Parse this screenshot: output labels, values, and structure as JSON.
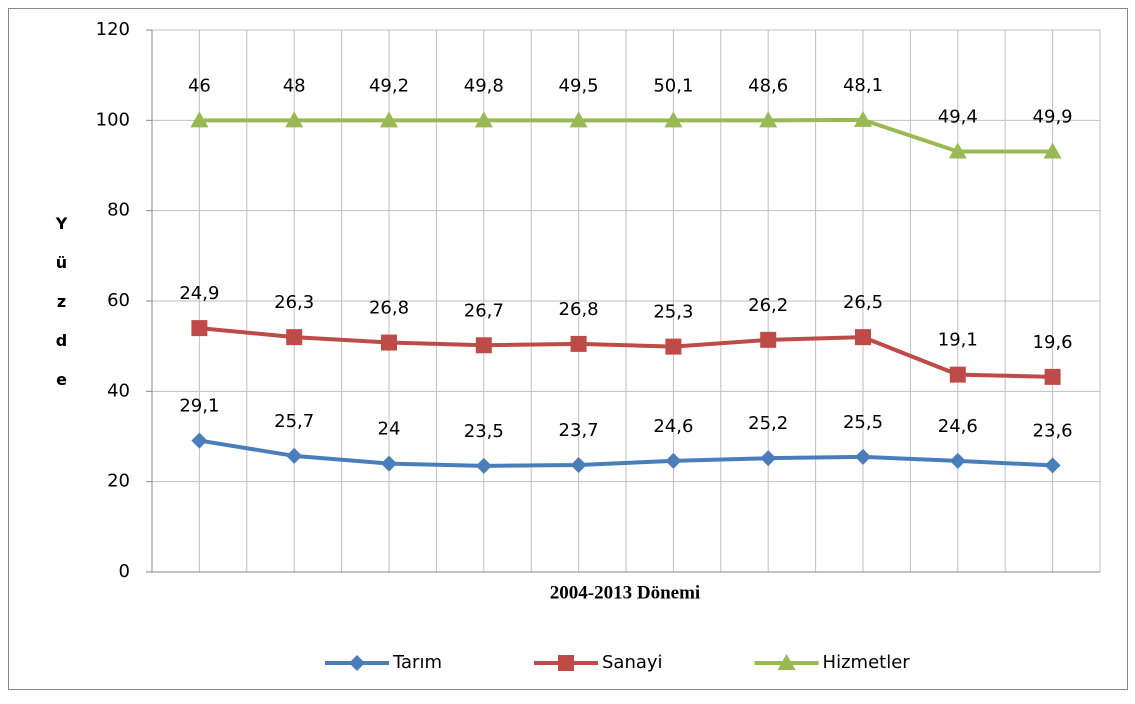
{
  "chart_data": {
    "type": "line",
    "stacked": true,
    "categories": [
      null,
      null,
      null,
      null,
      null,
      null,
      null,
      null,
      null,
      null
    ],
    "xlabel": "2004-2013 Dönemi",
    "ylabel": "Yüzde",
    "ylim": [
      0,
      120
    ],
    "yticks": [
      0,
      20,
      40,
      60,
      80,
      100,
      120
    ],
    "grid": true,
    "legend": "bottom",
    "series": [
      {
        "name": "Tarım",
        "color": "#4a7ebb",
        "marker": "diamond",
        "values": [
          29.1,
          25.7,
          24,
          23.5,
          23.7,
          24.6,
          25.2,
          25.5,
          24.6,
          23.6
        ],
        "value_labels": [
          "29,1",
          "25,7",
          "24",
          "23,5",
          "23,7",
          "24,6",
          "25,2",
          "25,5",
          "24,6",
          "23,6"
        ]
      },
      {
        "name": "Sanayi",
        "color": "#be4b48",
        "marker": "square",
        "values": [
          24.9,
          26.3,
          26.8,
          26.7,
          26.8,
          25.3,
          26.2,
          26.5,
          19.1,
          19.6
        ],
        "value_labels": [
          "24,9",
          "26,3",
          "26,8",
          "26,7",
          "26,8",
          "25,3",
          "26,2",
          "26,5",
          "19,1",
          "19,6"
        ]
      },
      {
        "name": "Hizmetler",
        "color": "#98b954",
        "marker": "triangle",
        "values": [
          46,
          48,
          49.2,
          49.8,
          49.5,
          50.1,
          48.6,
          48.1,
          49.4,
          49.9
        ],
        "value_labels": [
          "46",
          "48",
          "49,2",
          "49,8",
          "49,5",
          "50,1",
          "48,6",
          "48,1",
          "49,4",
          "49,9"
        ]
      }
    ]
  }
}
